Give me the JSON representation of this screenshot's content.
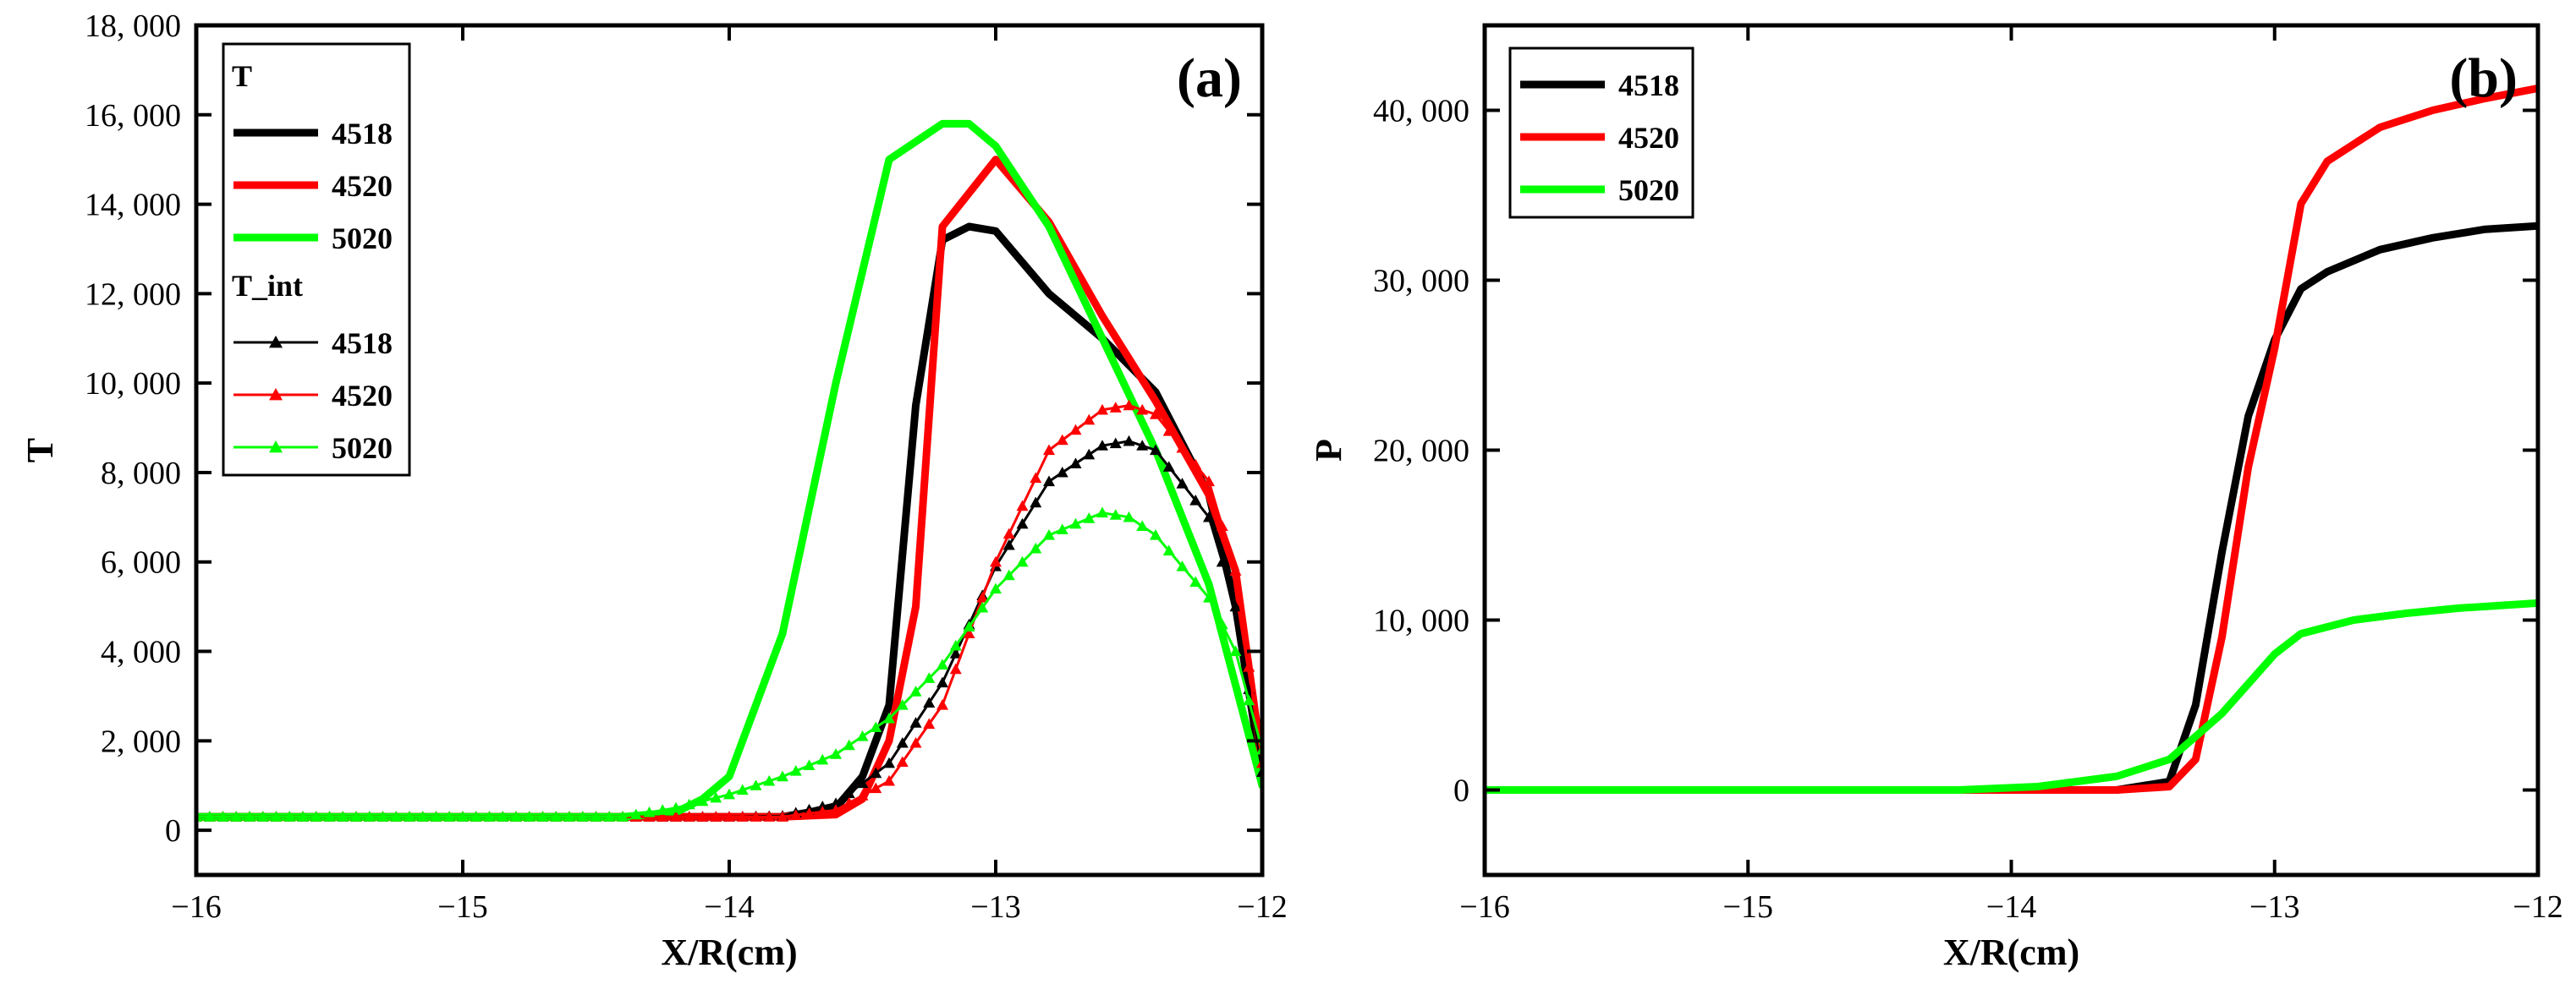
{
  "chart_data": [
    {
      "type": "line",
      "panel_label": "(a)",
      "xlabel": "X/R(cm)",
      "ylabel": "T",
      "xlim": [
        -16,
        -12
      ],
      "ylim": [
        -1000,
        18000
      ],
      "x_ticks": [
        -16,
        -15,
        -14,
        -13,
        -12
      ],
      "x_tick_labels": [
        "−16",
        "−15",
        "−14",
        "−13",
        "−12"
      ],
      "y_ticks": [
        0,
        2000,
        4000,
        6000,
        8000,
        10000,
        12000,
        14000,
        16000,
        18000
      ],
      "y_tick_labels": [
        "0",
        "2, 000",
        "4, 000",
        "6, 000",
        "8, 000",
        "10, 000",
        "12, 000",
        "14, 000",
        "16, 000",
        "18, 000"
      ],
      "legend_position": "top-left",
      "legend_groups": [
        {
          "title": "T",
          "entries": [
            {
              "name": "4518",
              "color": "#000000",
              "marker": "none"
            },
            {
              "name": "4520",
              "color": "#ff0000",
              "marker": "none"
            },
            {
              "name": "5020",
              "color": "#00ff00",
              "marker": "none"
            }
          ]
        },
        {
          "title": "T_int",
          "entries": [
            {
              "name": "4518",
              "color": "#000000",
              "marker": "triangle"
            },
            {
              "name": "4520",
              "color": "#ff0000",
              "marker": "triangle"
            },
            {
              "name": "5020",
              "color": "#00ff00",
              "marker": "triangle"
            }
          ]
        }
      ],
      "series": [
        {
          "name": "T 4518",
          "color": "#000000",
          "marker": "none",
          "points": [
            [
              -16,
              300
            ],
            [
              -13.8,
              300
            ],
            [
              -13.6,
              500
            ],
            [
              -13.5,
              1200
            ],
            [
              -13.4,
              2800
            ],
            [
              -13.3,
              9500
            ],
            [
              -13.2,
              13200
            ],
            [
              -13.1,
              13500
            ],
            [
              -13.0,
              13400
            ],
            [
              -12.8,
              12000
            ],
            [
              -12.6,
              11000
            ],
            [
              -12.4,
              9800
            ],
            [
              -12.2,
              7500
            ],
            [
              -12.1,
              5000
            ],
            [
              -12.0,
              1200
            ]
          ]
        },
        {
          "name": "T 4520",
          "color": "#ff0000",
          "marker": "none",
          "points": [
            [
              -16,
              300
            ],
            [
              -13.8,
              300
            ],
            [
              -13.6,
              350
            ],
            [
              -13.5,
              700
            ],
            [
              -13.4,
              2000
            ],
            [
              -13.3,
              5000
            ],
            [
              -13.2,
              13500
            ],
            [
              -13.0,
              15000
            ],
            [
              -12.8,
              13600
            ],
            [
              -12.6,
              11500
            ],
            [
              -12.4,
              9600
            ],
            [
              -12.2,
              7500
            ],
            [
              -12.1,
              5800
            ],
            [
              -12.0,
              1500
            ]
          ]
        },
        {
          "name": "T 5020",
          "color": "#00ff00",
          "marker": "none",
          "points": [
            [
              -16,
              300
            ],
            [
              -14.4,
              300
            ],
            [
              -14.2,
              400
            ],
            [
              -14.1,
              700
            ],
            [
              -14.0,
              1200
            ],
            [
              -13.8,
              4400
            ],
            [
              -13.6,
              10000
            ],
            [
              -13.4,
              15000
            ],
            [
              -13.2,
              15800
            ],
            [
              -13.1,
              15800
            ],
            [
              -13.0,
              15300
            ],
            [
              -12.8,
              13500
            ],
            [
              -12.6,
              11000
            ],
            [
              -12.4,
              8500
            ],
            [
              -12.2,
              5500
            ],
            [
              -12.0,
              1000
            ]
          ]
        },
        {
          "name": "T_int 4518",
          "color": "#000000",
          "marker": "triangle",
          "points": [
            [
              -16,
              300
            ],
            [
              -14.0,
              300
            ],
            [
              -13.8,
              320
            ],
            [
              -13.6,
              600
            ],
            [
              -13.4,
              1500
            ],
            [
              -13.2,
              3300
            ],
            [
              -13.0,
              5900
            ],
            [
              -12.8,
              7800
            ],
            [
              -12.6,
              8600
            ],
            [
              -12.5,
              8700
            ],
            [
              -12.4,
              8500
            ],
            [
              -12.2,
              7000
            ],
            [
              -12.1,
              5000
            ],
            [
              -12.0,
              1300
            ]
          ]
        },
        {
          "name": "T_int 4520",
          "color": "#ff0000",
          "marker": "triangle",
          "points": [
            [
              -16,
              300
            ],
            [
              -14.0,
              300
            ],
            [
              -13.8,
              300
            ],
            [
              -13.6,
              450
            ],
            [
              -13.4,
              1100
            ],
            [
              -13.2,
              2800
            ],
            [
              -13.0,
              6000
            ],
            [
              -12.8,
              8500
            ],
            [
              -12.6,
              9400
            ],
            [
              -12.5,
              9500
            ],
            [
              -12.4,
              9300
            ],
            [
              -12.2,
              7800
            ],
            [
              -12.1,
              5800
            ],
            [
              -12.0,
              1500
            ]
          ]
        },
        {
          "name": "T_int 5020",
          "color": "#00ff00",
          "marker": "triangle",
          "points": [
            [
              -16,
              300
            ],
            [
              -14.4,
              300
            ],
            [
              -14.2,
              500
            ],
            [
              -14.0,
              800
            ],
            [
              -13.8,
              1200
            ],
            [
              -13.6,
              1700
            ],
            [
              -13.4,
              2500
            ],
            [
              -13.2,
              3700
            ],
            [
              -13.0,
              5400
            ],
            [
              -12.8,
              6600
            ],
            [
              -12.6,
              7100
            ],
            [
              -12.5,
              7000
            ],
            [
              -12.4,
              6600
            ],
            [
              -12.2,
              5200
            ],
            [
              -12.1,
              4000
            ],
            [
              -12.0,
              1800
            ]
          ]
        }
      ]
    },
    {
      "type": "line",
      "panel_label": "(b)",
      "xlabel": "X/R(cm)",
      "ylabel": "P",
      "xlim": [
        -16,
        -12
      ],
      "ylim": [
        -5000,
        45000
      ],
      "x_ticks": [
        -16,
        -15,
        -14,
        -13,
        -12
      ],
      "x_tick_labels": [
        "−16",
        "−15",
        "−14",
        "−13",
        "−12"
      ],
      "y_ticks": [
        0,
        10000,
        20000,
        30000,
        40000
      ],
      "y_tick_labels": [
        "0",
        "10, 000",
        "20, 000",
        "30, 000",
        "40, 000"
      ],
      "legend_position": "top-left",
      "legend_groups": [
        {
          "title": "",
          "entries": [
            {
              "name": "4518",
              "color": "#000000",
              "marker": "none"
            },
            {
              "name": "4520",
              "color": "#ff0000",
              "marker": "none"
            },
            {
              "name": "5020",
              "color": "#00ff00",
              "marker": "none"
            }
          ]
        }
      ],
      "series": [
        {
          "name": "4518",
          "color": "#000000",
          "marker": "none",
          "points": [
            [
              -16,
              0
            ],
            [
              -13.6,
              0
            ],
            [
              -13.4,
              500
            ],
            [
              -13.3,
              5000
            ],
            [
              -13.2,
              14000
            ],
            [
              -13.1,
              22000
            ],
            [
              -13.0,
              26500
            ],
            [
              -12.9,
              29500
            ],
            [
              -12.8,
              30500
            ],
            [
              -12.6,
              31800
            ],
            [
              -12.4,
              32500
            ],
            [
              -12.2,
              33000
            ],
            [
              -12.0,
              33200
            ]
          ]
        },
        {
          "name": "4520",
          "color": "#ff0000",
          "marker": "none",
          "points": [
            [
              -16,
              0
            ],
            [
              -13.6,
              0
            ],
            [
              -13.4,
              200
            ],
            [
              -13.3,
              1800
            ],
            [
              -13.2,
              9000
            ],
            [
              -13.1,
              19000
            ],
            [
              -13.0,
              26000
            ],
            [
              -12.9,
              34500
            ],
            [
              -12.8,
              37000
            ],
            [
              -12.6,
              39000
            ],
            [
              -12.4,
              40000
            ],
            [
              -12.2,
              40700
            ],
            [
              -12.0,
              41300
            ]
          ]
        },
        {
          "name": "5020",
          "color": "#00ff00",
          "marker": "none",
          "points": [
            [
              -16,
              0
            ],
            [
              -14.2,
              0
            ],
            [
              -13.9,
              200
            ],
            [
              -13.6,
              800
            ],
            [
              -13.4,
              1800
            ],
            [
              -13.2,
              4500
            ],
            [
              -13.0,
              8000
            ],
            [
              -12.9,
              9200
            ],
            [
              -12.7,
              10000
            ],
            [
              -12.5,
              10400
            ],
            [
              -12.3,
              10700
            ],
            [
              -12.0,
              11000
            ]
          ]
        }
      ]
    }
  ]
}
